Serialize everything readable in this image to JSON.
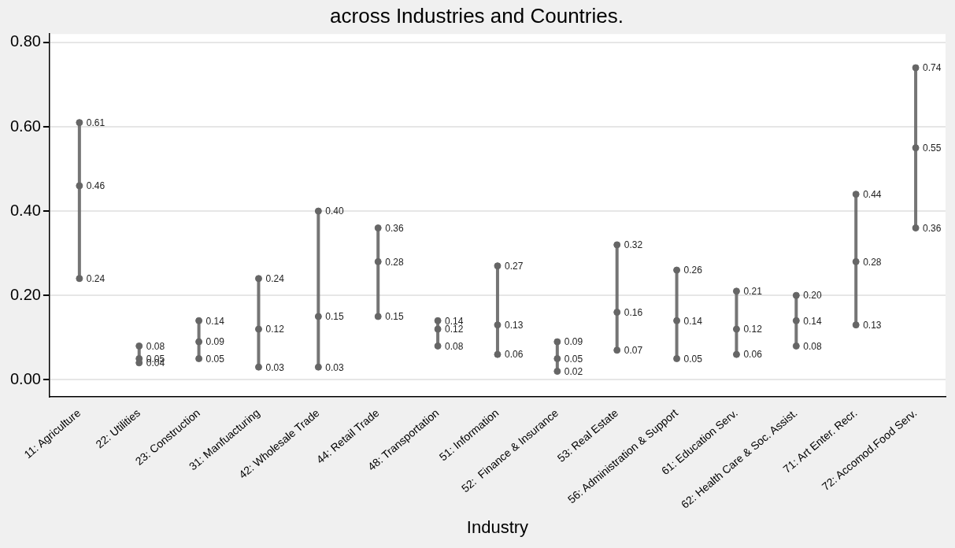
{
  "chart_data": {
    "type": "scatter",
    "title": "across Industries and Countries.",
    "xlabel": "Industry",
    "categories": [
      "11: Agriculture",
      "22: Utilities",
      "23: Construction",
      "31: Manfuacturing",
      "42: Wholesale Trade",
      "44: Retail Trade",
      "48: Transportation",
      "51: Information",
      "52:  Finance & Insurance",
      "53: Real Estate",
      "56: Administration & Support",
      "61: Education Serv.",
      "62: Health Care & Soc. Assist.",
      "71: Art Enter. Recr.",
      "72: Accomod.Food Serv."
    ],
    "series": [
      {
        "color": "#666666",
        "values": [
          0.24,
          0.04,
          0.05,
          0.03,
          0.03,
          0.15,
          0.08,
          0.06,
          0.02,
          0.07,
          0.05,
          0.06,
          0.08,
          0.13,
          0.36
        ],
        "value_labels": [
          "0.24",
          "0.04",
          "0.05",
          "0.03",
          "0.03",
          "0.15",
          "0.08",
          "0.06",
          "0.02",
          "0.07",
          "0.05",
          "0.06",
          "0.08",
          "0.13",
          "0.36"
        ]
      },
      {
        "color": "#666666",
        "values": [
          0.46,
          0.05,
          0.09,
          0.12,
          0.15,
          0.28,
          0.12,
          0.13,
          0.05,
          0.16,
          0.14,
          0.12,
          0.14,
          0.28,
          0.55
        ],
        "value_labels": [
          "0.46",
          "0.05",
          "0.09",
          "0.12",
          "0.15",
          "0.28",
          "0.12",
          "0.13",
          "0.05",
          "0.16",
          "0.14",
          "0.12",
          "0.14",
          "0.28",
          "0.55"
        ]
      },
      {
        "color": "#666666",
        "values": [
          0.61,
          0.08,
          0.14,
          0.24,
          0.4,
          0.36,
          0.14,
          0.27,
          0.09,
          0.32,
          0.26,
          0.21,
          0.2,
          0.44,
          0.74
        ],
        "value_labels": [
          "0.61",
          "0.08",
          "0.14",
          "0.24",
          "0.40",
          "0.36",
          "0.14",
          "0.27",
          "0.09",
          "0.32",
          "0.26",
          "0.21",
          "0.20",
          "0.44",
          "0.74"
        ]
      }
    ],
    "ylim": [
      -0.04,
      0.82
    ],
    "yticks": [
      {
        "value": 0,
        "label": "0.00"
      },
      {
        "value": 0.2,
        "label": "0.20"
      },
      {
        "value": 0.4,
        "label": "0.40"
      },
      {
        "value": 0.6,
        "label": "0.60"
      },
      {
        "value": 0.8,
        "label": "0.80"
      }
    ],
    "grid": "y",
    "legend": false,
    "marker": "circle"
  }
}
